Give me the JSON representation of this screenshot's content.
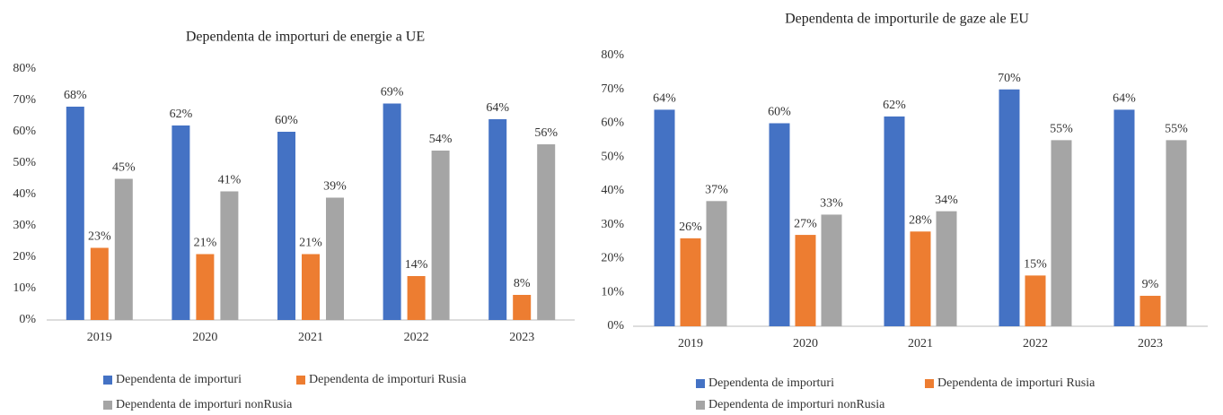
{
  "chart_data": [
    {
      "type": "bar",
      "title": "Dependenta de importuri de energie a UE",
      "categories": [
        "2019",
        "2020",
        "2021",
        "2022",
        "2023"
      ],
      "series": [
        {
          "name": "Dependenta de importuri",
          "color": "#4472c4",
          "values": [
            68,
            62,
            60,
            69,
            64
          ],
          "value_labels": [
            "68%",
            "62%",
            "60%",
            "69%",
            "64%"
          ]
        },
        {
          "name": "Dependenta de importuri Rusia",
          "color": "#ed7d31",
          "values": [
            23,
            21,
            21,
            14,
            8
          ],
          "value_labels": [
            "23%",
            "21%",
            "21%",
            "14%",
            "8%"
          ]
        },
        {
          "name": "Dependenta de importuri nonRusia",
          "color": "#a5a5a5",
          "values": [
            45,
            41,
            39,
            54,
            56
          ],
          "value_labels": [
            "45%",
            "41%",
            "39%",
            "54%",
            "56%"
          ]
        }
      ],
      "ylim": [
        0,
        80
      ],
      "yticks": [
        {
          "value": 0,
          "label": "0%"
        },
        {
          "value": 10,
          "label": "10%"
        },
        {
          "value": 20,
          "label": "20%"
        },
        {
          "value": 30,
          "label": "30%"
        },
        {
          "value": 40,
          "label": "40%"
        },
        {
          "value": 50,
          "label": "50%"
        },
        {
          "value": 60,
          "label": "60%"
        },
        {
          "value": 70,
          "label": "70%"
        },
        {
          "value": 80,
          "label": "80%"
        }
      ],
      "grid": false,
      "legend": "bottom"
    },
    {
      "type": "bar",
      "title": "Dependenta de importurile de gaze ale EU",
      "categories": [
        "2019",
        "2020",
        "2021",
        "2022",
        "2023"
      ],
      "series": [
        {
          "name": "Dependenta de importuri",
          "color": "#4472c4",
          "values": [
            64,
            60,
            62,
            70,
            64
          ],
          "value_labels": [
            "64%",
            "60%",
            "62%",
            "70%",
            "64%"
          ]
        },
        {
          "name": "Dependenta de importuri Rusia",
          "color": "#ed7d31",
          "values": [
            26,
            27,
            28,
            15,
            9
          ],
          "value_labels": [
            "26%",
            "27%",
            "28%",
            "15%",
            "9%"
          ]
        },
        {
          "name": "Dependenta de importuri nonRusia",
          "color": "#a5a5a5",
          "values": [
            37,
            33,
            34,
            55,
            55
          ],
          "value_labels": [
            "37%",
            "33%",
            "34%",
            "55%",
            "55%"
          ]
        }
      ],
      "ylim": [
        0,
        80
      ],
      "yticks": [
        {
          "value": 0,
          "label": "0%"
        },
        {
          "value": 10,
          "label": "10%"
        },
        {
          "value": 20,
          "label": "20%"
        },
        {
          "value": 30,
          "label": "30%"
        },
        {
          "value": 40,
          "label": "40%"
        },
        {
          "value": 50,
          "label": "50%"
        },
        {
          "value": 60,
          "label": "60%"
        },
        {
          "value": 70,
          "label": "70%"
        },
        {
          "value": 80,
          "label": "80%"
        }
      ],
      "grid": false,
      "legend": "bottom"
    }
  ]
}
